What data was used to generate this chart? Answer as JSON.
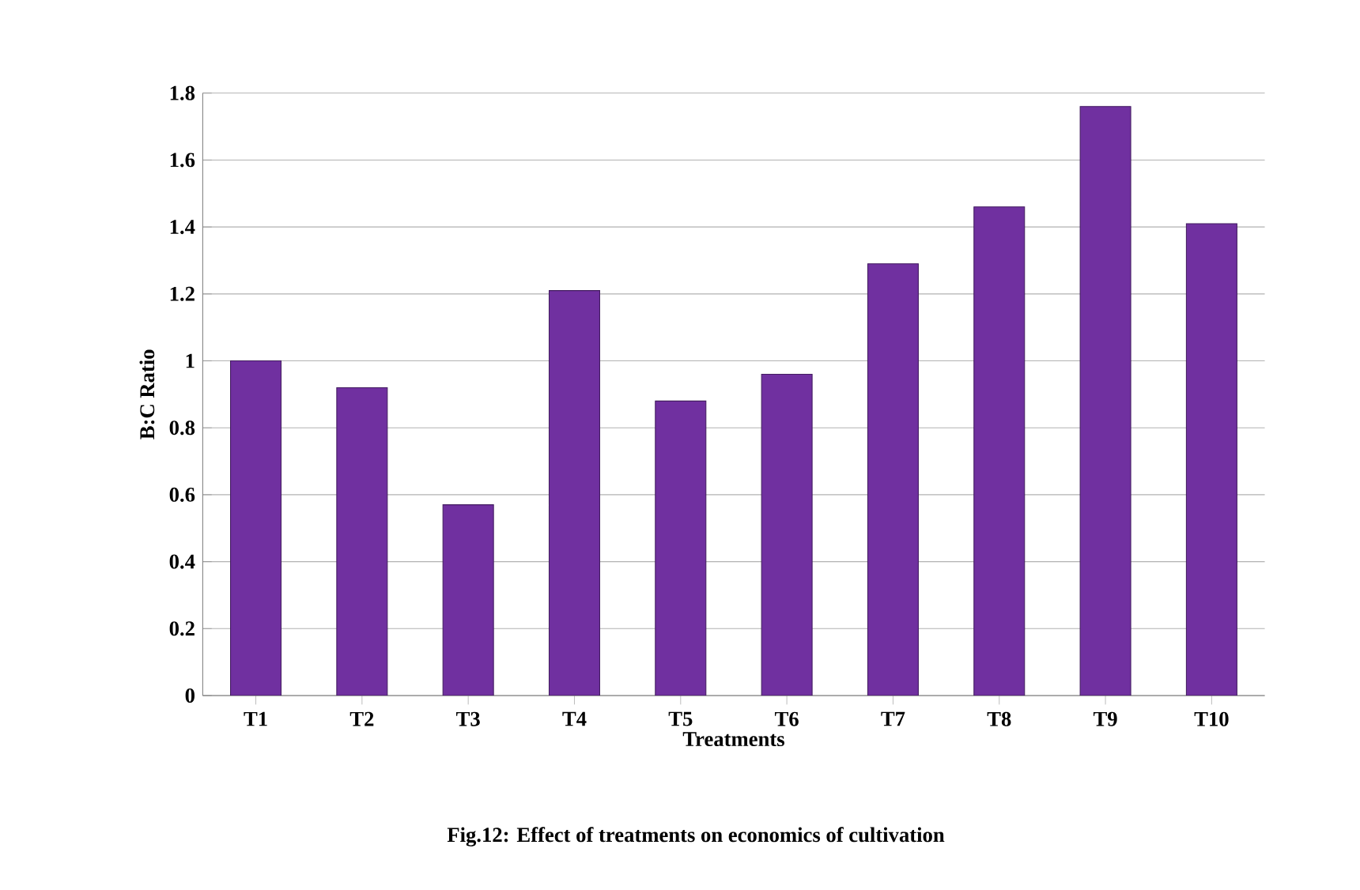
{
  "chart_data": {
    "type": "bar",
    "xlabel": "Treatments",
    "ylabel": "B:C Ratio",
    "categories": [
      "T1",
      "T2",
      "T3",
      "T4",
      "T5",
      "T6",
      "T7",
      "T8",
      "T9",
      "T10"
    ],
    "values": [
      1.0,
      0.92,
      0.57,
      1.21,
      0.88,
      0.96,
      1.29,
      1.46,
      1.76,
      1.41
    ],
    "color": "#7030a0",
    "ylim": [
      0,
      1.8
    ],
    "yticks": [
      0,
      0.2,
      0.4,
      0.6,
      0.8,
      1,
      1.2,
      1.4,
      1.6,
      1.8
    ],
    "grid": "y",
    "annotations": [
      "Fig.12:  Effect of treatments on economics of cultivation"
    ]
  }
}
